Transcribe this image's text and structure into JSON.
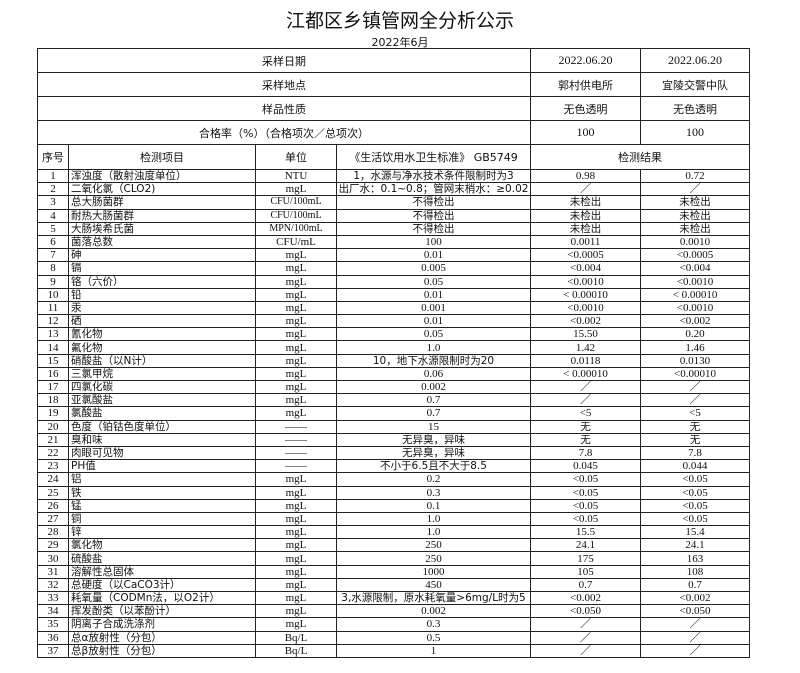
{
  "title": "江都区乡镇管网全分析公示",
  "subtitle": "2022年6月",
  "header": {
    "sampling_date": {
      "label": "采样日期",
      "values": [
        "2022.06.20",
        "2022.06.20"
      ]
    },
    "sampling_site": {
      "label": "采样地点",
      "values": [
        "郭村供电所",
        "宜陵交警中队"
      ]
    },
    "sample_nature": {
      "label": "样品性质",
      "values": [
        "无色透明",
        "无色透明"
      ]
    },
    "pass_rate": {
      "label": "合格率（%）（合格项次／总项次）",
      "values": [
        "100",
        "100"
      ]
    }
  },
  "columns": {
    "seq": "序号",
    "item": "检测项目",
    "unit": "单位",
    "standard": "《生活饮用水卫生标准》 GB5749",
    "results": "检测结果"
  },
  "rows": [
    [
      "1",
      "浑浊度（散射浊度单位）",
      "NTU",
      "1，水源与净水技术条件限制时为3",
      "0.98",
      "0.72"
    ],
    [
      "2",
      "二氧化氯（CLO2)",
      "mgL",
      "出厂水：0.1~0.8；管网末梢水：≥0.02",
      "／",
      "／"
    ],
    [
      "3",
      "总大肠菌群",
      "CFU/100mL",
      "不得检出",
      "未检出",
      "未检出"
    ],
    [
      "4",
      "耐热大肠菌群",
      "CFU/100mL",
      "不得检出",
      "未检出",
      "未检出"
    ],
    [
      "5",
      "大肠埃希氏菌",
      "MPN/100mL",
      "不得检出",
      "未检出",
      "未检出"
    ],
    [
      "6",
      "菌落总数",
      "CFU/mL",
      "100",
      "0.0011",
      "0.0010"
    ],
    [
      "7",
      "砷",
      "mgL",
      "0.01",
      "<0.0005",
      "<0.0005"
    ],
    [
      "8",
      "镉",
      "mgL",
      "0.005",
      "<0.004",
      "<0.004"
    ],
    [
      "9",
      "铬（六价）",
      "mgL",
      "0.05",
      "<0.0010",
      "<0.0010"
    ],
    [
      "10",
      "铅",
      "mgL",
      "0.01",
      "< 0.00010",
      "< 0.00010"
    ],
    [
      "11",
      "汞",
      "mgL",
      "0.001",
      "<0.0010",
      "<0.0010"
    ],
    [
      "12",
      "硒",
      "mgL",
      "0.01",
      "<0.002",
      "<0.002"
    ],
    [
      "13",
      "氰化物",
      "mgL",
      "0.05",
      "15.50",
      "0.20"
    ],
    [
      "14",
      "氟化物",
      "mgL",
      "1.0",
      "1.42",
      "1.46"
    ],
    [
      "15",
      "硝酸盐（以N计）",
      "mgL",
      "10，地下水源限制时为20",
      "0.0118",
      "0.0130"
    ],
    [
      "16",
      "三氯甲烷",
      "mgL",
      "0.06",
      "< 0.00010",
      "<0.00010"
    ],
    [
      "17",
      "四氯化碳",
      "mgL",
      "0.002",
      "／",
      "／"
    ],
    [
      "18",
      "亚氯酸盐",
      "mgL",
      "0.7",
      "／",
      "／"
    ],
    [
      "19",
      "氯酸盐",
      "mgL",
      "0.7",
      "<5",
      "<5"
    ],
    [
      "20",
      "色度（铂钴色度单位）",
      "——",
      "15",
      "无",
      "无"
    ],
    [
      "21",
      "臭和味",
      "——",
      "无异臭，异味",
      "无",
      "无"
    ],
    [
      "22",
      "肉眼可见物",
      "——",
      "无异臭，异味",
      "7.8",
      "7.8"
    ],
    [
      "23",
      "PH值",
      "——",
      "不小于6.5且不大于8.5",
      "0.045",
      "0.044"
    ],
    [
      "24",
      "铝",
      "mgL",
      "0.2",
      "<0.05",
      "<0.05"
    ],
    [
      "25",
      "铁",
      "mgL",
      "0.3",
      "<0.05",
      "<0.05"
    ],
    [
      "26",
      "锰",
      "mgL",
      "0.1",
      "<0.05",
      "<0.05"
    ],
    [
      "27",
      "铜",
      "mgL",
      "1.0",
      "<0.05",
      "<0.05"
    ],
    [
      "28",
      "锌",
      "mgL",
      "1.0",
      "15.5",
      "15.4"
    ],
    [
      "29",
      "氯化物",
      "mgL",
      "250",
      "24.1",
      "24.1"
    ],
    [
      "30",
      "硫酸盐",
      "mgL",
      "250",
      "175",
      "163"
    ],
    [
      "31",
      "溶解性总固体",
      "mgL",
      "1000",
      "105",
      "108"
    ],
    [
      "32",
      "总硬度（以CaCO3计）",
      "mgL",
      "450",
      "0.7",
      "0.7"
    ],
    [
      "33",
      "耗氧量（CODMn法，以O2计）",
      "mgL",
      "3,水源限制，原水耗氧量>6mg/L时为5",
      "<0.002",
      "<0.002"
    ],
    [
      "34",
      "挥发酚类（以苯酚计）",
      "mgL",
      "0.002",
      "<0.050",
      "<0.050"
    ],
    [
      "35",
      "阴离子合成洗涤剂",
      "mgL",
      "0.3",
      "／",
      "／"
    ],
    [
      "36",
      "总α放射性（分包）",
      "Bq/L",
      "0.5",
      "／",
      "／"
    ],
    [
      "37",
      "总β放射性（分包）",
      "Bq/L",
      "1",
      "／",
      "／"
    ]
  ]
}
